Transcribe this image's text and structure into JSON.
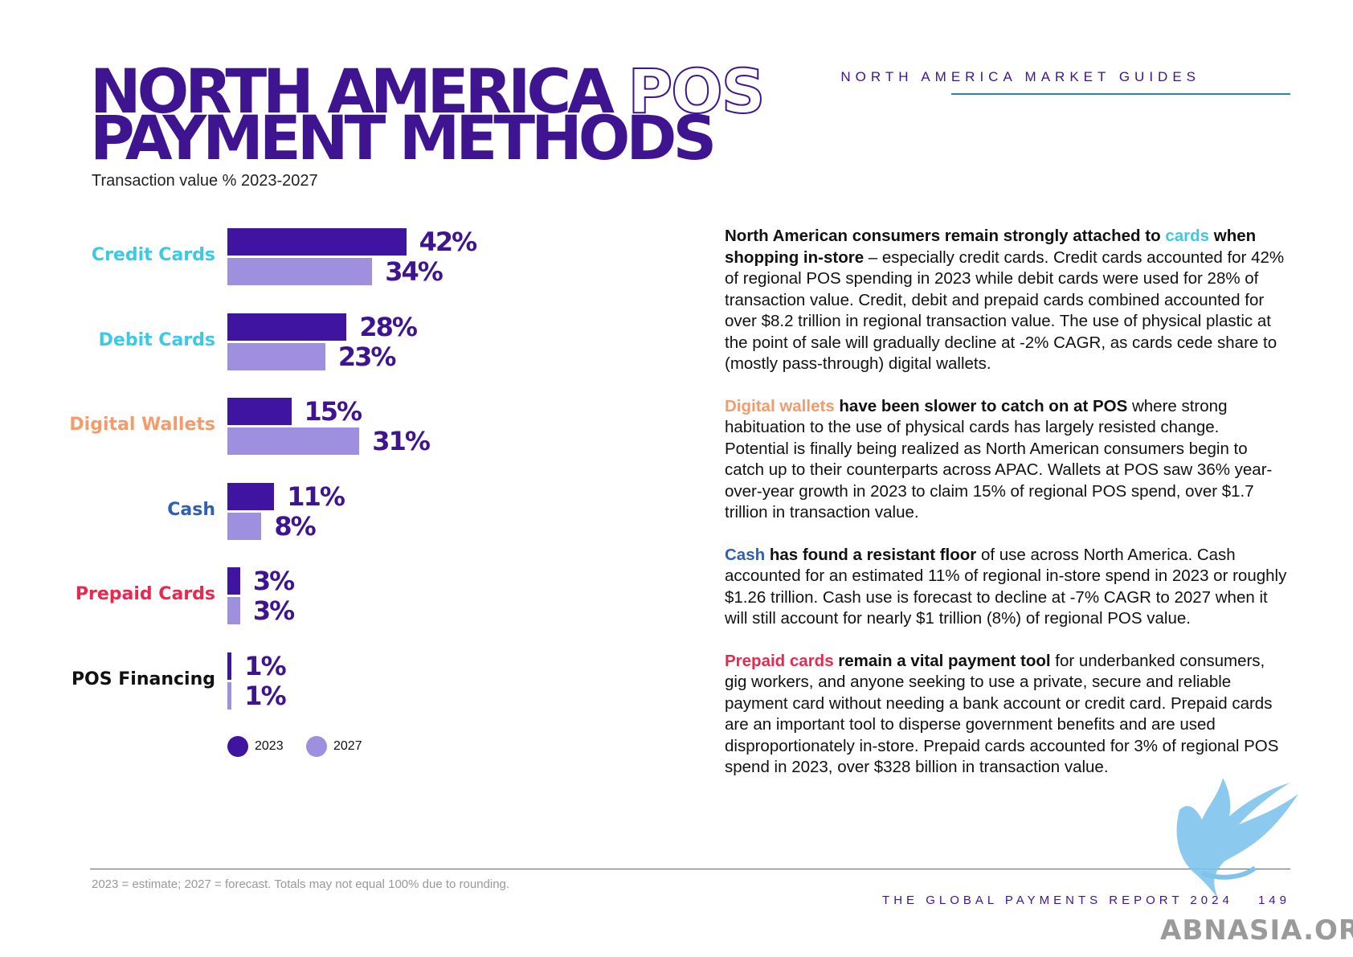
{
  "header": {
    "guides_label": "NORTH AMERICA MARKET GUIDES"
  },
  "title": {
    "line1_bold": "NORTH AMERICA",
    "line1_outline": "POS",
    "line2": "PAYMENT METHODS"
  },
  "subtitle": "Transaction value % 2023-2027",
  "colors": {
    "series_2023": "#3f14a0",
    "series_2027": "#9e8fdf",
    "credit_cards": "#3ec9e3",
    "debit_cards": "#3ec9e3",
    "digital_wallets": "#f39c6b",
    "cash": "#2f5fb3",
    "prepaid_cards": "#e8294f",
    "pos_financing": "#111111"
  },
  "chart_data": {
    "type": "bar",
    "orientation": "horizontal",
    "categories": [
      "Credit Cards",
      "Debit Cards",
      "Digital Wallets",
      "Cash",
      "Prepaid Cards",
      "POS Financing"
    ],
    "series": [
      {
        "name": "2023",
        "values": [
          42,
          28,
          15,
          11,
          3,
          1
        ],
        "labels": [
          "42%",
          "28%",
          "15%",
          "11%",
          "3%",
          "1%"
        ]
      },
      {
        "name": "2027",
        "values": [
          34,
          23,
          31,
          8,
          3,
          1
        ],
        "labels": [
          "34%",
          "23%",
          "31%",
          "8%",
          "3%",
          "1%"
        ]
      }
    ],
    "unit": "%",
    "legend": [
      "2023",
      "2027"
    ],
    "legend_position": "bottom",
    "grid": false
  },
  "body": {
    "p1": {
      "bold1": "North American consumers remain strongly attached to ",
      "accent": "cards",
      "bold2": " when shopping in-store",
      "text": " – especially credit cards. Credit cards accounted for 42% of regional POS spending in 2023 while debit cards were used for 28% of transaction value. Credit, debit and prepaid cards combined accounted for over $8.2 trillion in regional transaction value. The use of physical plastic at the point of sale will gradually decline at -2% CAGR, as cards cede share to (mostly pass-through) digital wallets."
    },
    "p2": {
      "accent": "Digital wallets",
      "bold": " have been slower to catch on at POS",
      "text": " where strong habituation to the use of physical cards has largely resisted change. Potential is finally being realized as North American consumers begin to catch up to their counterparts across APAC. Wallets at POS saw 36% year-over-year growth in 2023 to claim 15% of regional POS spend, over $1.7 trillion in transaction value."
    },
    "p3": {
      "accent": "Cash",
      "bold": " has found a resistant floor",
      "text": " of use across North America. Cash accounted for an estimated 11% of regional in-store spend in 2023 or roughly $1.26 trillion. Cash use is forecast to decline at -7% CAGR to 2027 when it will still account for nearly $1 trillion (8%) of regional POS value."
    },
    "p4": {
      "accent": "Prepaid cards",
      "bold": " remain a vital payment tool",
      "text": " for underbanked consumers, gig workers, and anyone seeking to use a private, secure and reliable payment card without needing a bank account or credit card. Prepaid cards are an important tool to disperse government benefits and are used disproportionately in-store. Prepaid cards accounted for 3% of regional POS spend in 2023, over $328 billion in transaction value."
    }
  },
  "footer": {
    "footnote": "2023 = estimate; 2027 = forecast. Totals may not equal 100% due to rounding.",
    "report": "THE GLOBAL PAYMENTS REPORT 2024",
    "page": "149"
  },
  "watermark": "ABNASIA.ORG"
}
